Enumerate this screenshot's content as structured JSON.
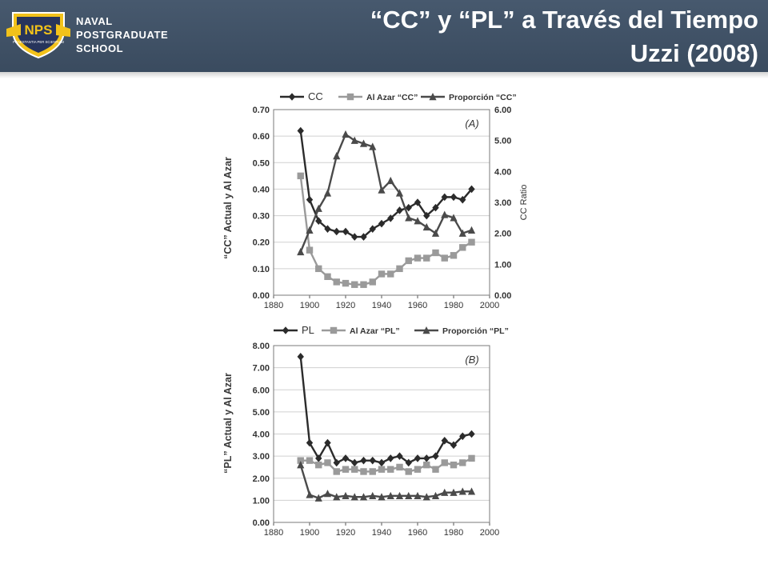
{
  "header": {
    "logo_mark": "NPS",
    "logo_motto": "PRAESTANTIA PER SCIENTIAM",
    "logo_lines": [
      "NAVAL",
      "POSTGRADUATE",
      "SCHOOL"
    ],
    "title_line1": "“CC” y “PL” a Través del Tiempo",
    "title_line2": "Uzzi (2008)",
    "icon": "nps-shield-icon"
  },
  "colors": {
    "header_bg": "#3f5166",
    "actual": "#2b2b2b",
    "random": "#9a9a9a",
    "ratio": "#4a4a4a"
  },
  "chart_data": [
    {
      "type": "line",
      "panel_label": "(A)",
      "ylabel": "“CC” Actual y Al Azar",
      "y2label": "CC Ratio",
      "xlim": [
        1880,
        2000
      ],
      "x_ticks": [
        1880,
        1900,
        1920,
        1940,
        1960,
        1980,
        2000
      ],
      "ylim": [
        0,
        0.7
      ],
      "y_ticks": [
        "0.00",
        "0.10",
        "0.20",
        "0.30",
        "0.40",
        "0.50",
        "0.60",
        "0.70"
      ],
      "y2lim": [
        0,
        6
      ],
      "y2_ticks": [
        "0.00",
        "1.00",
        "2.00",
        "3.00",
        "4.00",
        "5.00",
        "6.00"
      ],
      "legend_position": "top",
      "grid": true,
      "series": [
        {
          "name": "CC",
          "marker": "diamond",
          "axis": "left",
          "x": [
            1895,
            1900,
            1905,
            1910,
            1915,
            1920,
            1925,
            1930,
            1935,
            1940,
            1945,
            1950,
            1955,
            1960,
            1965,
            1970,
            1975,
            1980,
            1985,
            1990
          ],
          "y": [
            0.62,
            0.36,
            0.28,
            0.25,
            0.24,
            0.24,
            0.22,
            0.22,
            0.25,
            0.27,
            0.29,
            0.32,
            0.33,
            0.35,
            0.3,
            0.33,
            0.37,
            0.37,
            0.36,
            0.4
          ]
        },
        {
          "name": "Al Azar “CC”",
          "marker": "square",
          "axis": "left",
          "x": [
            1895,
            1900,
            1905,
            1910,
            1915,
            1920,
            1925,
            1930,
            1935,
            1940,
            1945,
            1950,
            1955,
            1960,
            1965,
            1970,
            1975,
            1980,
            1985,
            1990
          ],
          "y": [
            0.45,
            0.17,
            0.1,
            0.07,
            0.05,
            0.045,
            0.04,
            0.04,
            0.05,
            0.08,
            0.08,
            0.1,
            0.13,
            0.14,
            0.14,
            0.16,
            0.14,
            0.15,
            0.18,
            0.2
          ]
        },
        {
          "name": "Proporción “CC”",
          "marker": "triangle",
          "axis": "right",
          "x": [
            1895,
            1900,
            1905,
            1910,
            1915,
            1920,
            1925,
            1930,
            1935,
            1940,
            1945,
            1950,
            1955,
            1960,
            1965,
            1970,
            1975,
            1980,
            1985,
            1990
          ],
          "y": [
            1.4,
            2.1,
            2.8,
            3.3,
            4.5,
            5.2,
            5.0,
            4.9,
            4.8,
            3.4,
            3.7,
            3.3,
            2.5,
            2.4,
            2.2,
            2.0,
            2.6,
            2.5,
            2.0,
            2.1
          ]
        }
      ]
    },
    {
      "type": "line",
      "panel_label": "(B)",
      "ylabel": "“PL” Actual y Al Azar",
      "xlim": [
        1880,
        2000
      ],
      "x_ticks": [
        1880,
        1900,
        1920,
        1940,
        1960,
        1980,
        2000
      ],
      "ylim": [
        0,
        8
      ],
      "y_ticks": [
        "0.00",
        "1.00",
        "2.00",
        "3.00",
        "4.00",
        "5.00",
        "6.00",
        "7.00",
        "8.00"
      ],
      "legend_position": "top",
      "grid": true,
      "series": [
        {
          "name": "PL",
          "marker": "diamond",
          "x": [
            1895,
            1900,
            1905,
            1910,
            1915,
            1920,
            1925,
            1930,
            1935,
            1940,
            1945,
            1950,
            1955,
            1960,
            1965,
            1970,
            1975,
            1980,
            1985,
            1990
          ],
          "y": [
            7.5,
            3.6,
            2.9,
            3.6,
            2.7,
            2.9,
            2.7,
            2.8,
            2.8,
            2.7,
            2.9,
            3.0,
            2.7,
            2.9,
            2.9,
            3.0,
            3.7,
            3.5,
            3.9,
            4.0
          ]
        },
        {
          "name": "Al Azar “PL”",
          "marker": "square",
          "x": [
            1895,
            1900,
            1905,
            1910,
            1915,
            1920,
            1925,
            1930,
            1935,
            1940,
            1945,
            1950,
            1955,
            1960,
            1965,
            1970,
            1975,
            1980,
            1985,
            1990
          ],
          "y": [
            2.8,
            2.8,
            2.6,
            2.7,
            2.3,
            2.4,
            2.4,
            2.3,
            2.3,
            2.4,
            2.4,
            2.5,
            2.3,
            2.4,
            2.6,
            2.4,
            2.7,
            2.6,
            2.7,
            2.9
          ]
        },
        {
          "name": "Proporción “PL”",
          "marker": "triangle",
          "x": [
            1895,
            1900,
            1905,
            1910,
            1915,
            1920,
            1925,
            1930,
            1935,
            1940,
            1945,
            1950,
            1955,
            1960,
            1965,
            1970,
            1975,
            1980,
            1985,
            1990
          ],
          "y": [
            2.6,
            1.25,
            1.1,
            1.3,
            1.15,
            1.2,
            1.15,
            1.15,
            1.2,
            1.15,
            1.2,
            1.2,
            1.2,
            1.2,
            1.15,
            1.2,
            1.35,
            1.35,
            1.4,
            1.4
          ]
        }
      ]
    }
  ]
}
